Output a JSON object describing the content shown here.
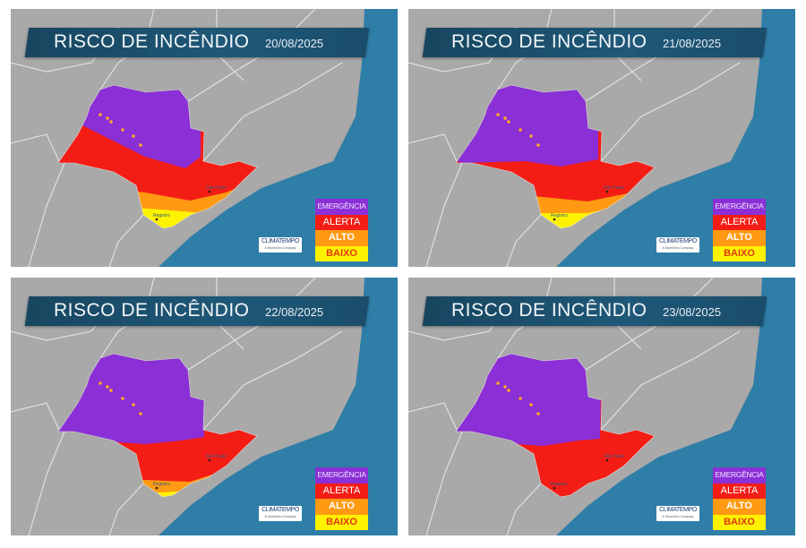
{
  "panels": [
    {
      "title": "RISCO DE INCÊNDIO",
      "date": "20/08/2025"
    },
    {
      "title": "RISCO DE INCÊNDIO",
      "date": "21/08/2025"
    },
    {
      "title": "RISCO DE INCÊNDIO",
      "date": "22/08/2025"
    },
    {
      "title": "RISCO DE INCÊNDIO",
      "date": "23/08/2025"
    }
  ],
  "legend": {
    "emergencia": "EMERGÊNCIA",
    "alerta": "ALERTA",
    "alto": "ALTO",
    "baixo": "BAIXO"
  },
  "logo": {
    "name": "CLIMATEMPO",
    "tagline": "A StormGeo Company"
  },
  "city_labels": [
    "Registro",
    "São Paulo"
  ],
  "colors": {
    "emergencia": "#8b2fd6",
    "alerta": "#f41d16",
    "alto": "#ff9a12",
    "baixo": "#fff200",
    "ocean": "#2f7ea8",
    "land": "#a9a9a9",
    "header": "#1d5272"
  }
}
